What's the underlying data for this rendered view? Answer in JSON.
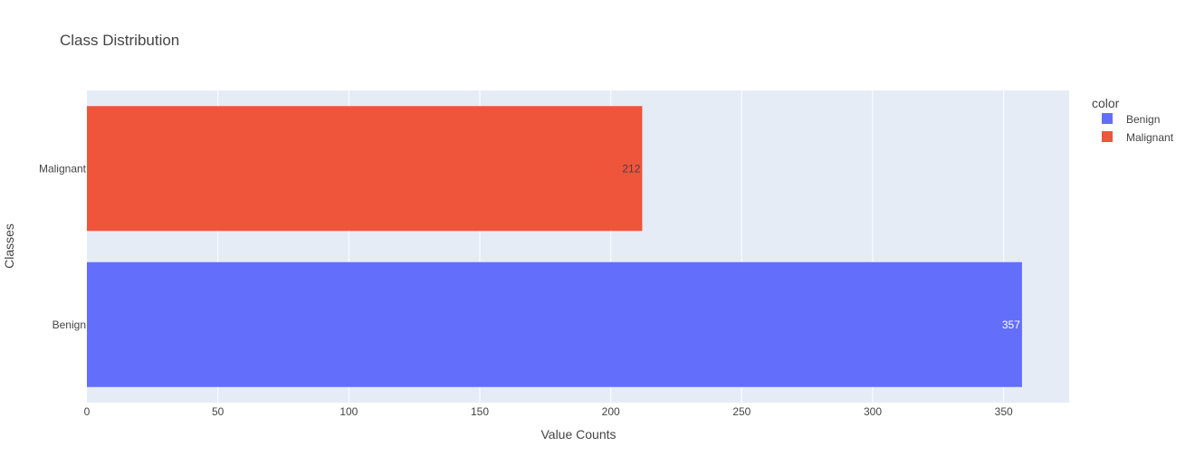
{
  "chart_data": {
    "type": "bar",
    "orientation": "horizontal",
    "title": "Class Distribution",
    "xlabel": "Value Counts",
    "ylabel": "Classes",
    "xlim": [
      0,
      375
    ],
    "x_ticks": [
      0,
      50,
      100,
      150,
      200,
      250,
      300,
      350
    ],
    "categories": [
      "Benign",
      "Malignant"
    ],
    "series": [
      {
        "name": "Benign",
        "category": "Benign",
        "value": 357,
        "color": "#636efa"
      },
      {
        "name": "Malignant",
        "category": "Malignant",
        "value": 212,
        "color": "#ef553b"
      }
    ],
    "legend": {
      "title": "color",
      "placement": "top-right",
      "items": [
        "Benign",
        "Malignant"
      ]
    },
    "grid": true,
    "plot_background": "#e5ecf6"
  }
}
